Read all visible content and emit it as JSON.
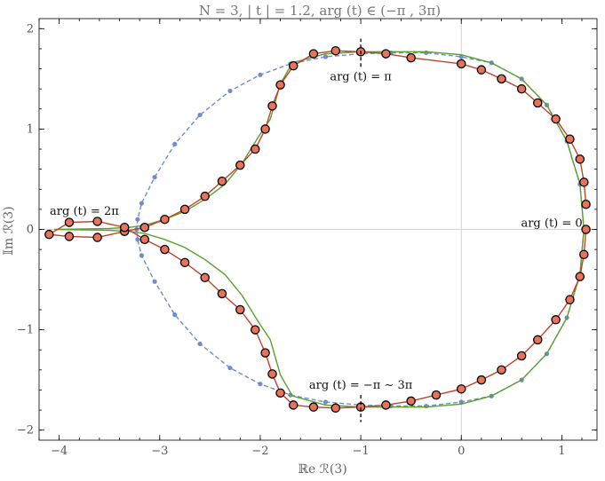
{
  "chart_data": {
    "type": "line",
    "title": "N = 3,  | t | = 1.2,  arg (t) ∈ (−π , 3π)",
    "xlabel": "ℝe ℛ(3)",
    "ylabel": "𝕀m ℛ(3)",
    "xlim": [
      -4.2,
      1.35
    ],
    "ylim": [
      -2.1,
      2.1
    ],
    "xticks": [
      -4,
      -3,
      -2,
      -1,
      0,
      1
    ],
    "yticks": [
      -2,
      -1,
      0,
      1,
      2
    ],
    "grid": false,
    "annotations": [
      {
        "text": "arg (t) = π",
        "x": -1.0,
        "y": 1.52
      },
      {
        "text": "arg (t) = 2π",
        "x": -3.75,
        "y": 0.18
      },
      {
        "text": "arg (t) = 0",
        "x": 0.9,
        "y": 0.06
      },
      {
        "text": "arg (t) = −π ∼ 3π",
        "x": -1.0,
        "y": -1.55
      }
    ],
    "markers": [
      {
        "x": -1.0,
        "y1": 1.62,
        "y2": 1.9
      },
      {
        "x": -1.0,
        "y1": -1.65,
        "y2": -1.92
      }
    ],
    "series": [
      {
        "color": "#6f8ccf",
        "style": "dashed-with-dots",
        "x": [
          1.22,
          1.18,
          1.05,
          0.85,
          0.6,
          0.3,
          0.0,
          -0.35,
          -0.7,
          -1.0,
          -1.35,
          -1.7,
          -2.0,
          -2.3,
          -2.6,
          -2.85,
          -3.05,
          -3.18,
          -3.22,
          -3.23,
          -3.22,
          -3.18,
          -3.05,
          -2.85,
          -2.6,
          -2.3,
          -2.0,
          -1.7,
          -1.35,
          -1.0,
          -0.7,
          -0.35,
          0.0,
          0.3,
          0.6,
          0.85,
          1.05,
          1.18,
          1.22
        ],
        "y": [
          0.0,
          0.45,
          0.88,
          1.24,
          1.5,
          1.66,
          1.72,
          1.76,
          1.76,
          1.75,
          1.72,
          1.65,
          1.54,
          1.38,
          1.14,
          0.85,
          0.52,
          0.26,
          0.1,
          0.0,
          -0.1,
          -0.26,
          -0.52,
          -0.85,
          -1.14,
          -1.38,
          -1.54,
          -1.65,
          -1.72,
          -1.75,
          -1.76,
          -1.76,
          -1.72,
          -1.66,
          -1.5,
          -1.24,
          -0.88,
          -0.45,
          0.0
        ]
      },
      {
        "color": "#5aa02c",
        "style": "solid",
        "x": [
          1.22,
          1.18,
          1.05,
          0.85,
          0.6,
          0.3,
          0.0,
          -0.35,
          -0.7,
          -1.0,
          -1.35,
          -1.68,
          -1.8,
          -1.9,
          -2.02,
          -2.18,
          -2.35,
          -2.55,
          -2.75,
          -2.95,
          -3.15,
          -3.3,
          -3.5,
          -3.75,
          -4.05,
          -3.75,
          -3.5,
          -3.3,
          -3.15,
          -2.95,
          -2.75,
          -2.55,
          -2.35,
          -2.18,
          -2.02,
          -1.9,
          -1.8,
          -1.68,
          -1.35,
          -1.0,
          -0.7,
          -0.35,
          0.0,
          0.3,
          0.6,
          0.85,
          1.05,
          1.18,
          1.22
        ],
        "y": [
          0.0,
          0.45,
          0.88,
          1.24,
          1.5,
          1.66,
          1.74,
          1.77,
          1.77,
          1.77,
          1.75,
          1.66,
          1.45,
          1.1,
          0.92,
          0.66,
          0.45,
          0.3,
          0.18,
          0.1,
          0.04,
          0.02,
          0.01,
          0.005,
          0.0,
          -0.005,
          -0.01,
          -0.02,
          -0.04,
          -0.1,
          -0.18,
          -0.3,
          -0.45,
          -0.66,
          -0.92,
          -1.1,
          -1.45,
          -1.66,
          -1.75,
          -1.77,
          -1.77,
          -1.77,
          -1.74,
          -1.66,
          -1.5,
          -1.24,
          -0.88,
          -0.45,
          0.0
        ]
      },
      {
        "color": "#c1442a",
        "style": "solid-with-circles",
        "x": [
          1.24,
          1.22,
          1.18,
          1.08,
          0.94,
          0.76,
          0.6,
          0.4,
          0.2,
          0.0,
          -0.5,
          -0.75,
          -1.0,
          -1.25,
          -1.47,
          -1.67,
          -1.8,
          -1.88,
          -1.95,
          -2.05,
          -2.2,
          -2.38,
          -2.55,
          -2.75,
          -2.95,
          -3.15,
          -3.35,
          -3.62,
          -3.9,
          -4.1,
          -3.9,
          -3.62,
          -3.35,
          -3.15,
          -2.95,
          -2.75,
          -2.55,
          -2.38,
          -2.2,
          -2.05,
          -1.95,
          -1.88,
          -1.8,
          -1.67,
          -1.47,
          -1.25,
          -1.0,
          -0.75,
          -0.5,
          -0.25,
          0.0,
          0.2,
          0.4,
          0.6,
          0.76,
          0.94,
          1.08,
          1.18,
          1.22,
          1.24
        ],
        "y": [
          0.25,
          0.47,
          0.7,
          0.9,
          1.1,
          1.26,
          1.4,
          1.5,
          1.59,
          1.65,
          1.71,
          1.75,
          1.77,
          1.78,
          1.75,
          1.63,
          1.44,
          1.23,
          1.0,
          0.8,
          0.64,
          0.48,
          0.33,
          0.2,
          0.1,
          0.02,
          -0.02,
          -0.08,
          -0.07,
          -0.05,
          0.07,
          0.08,
          0.02,
          -0.1,
          -0.2,
          -0.33,
          -0.48,
          -0.64,
          -0.8,
          -1.0,
          -1.23,
          -1.44,
          -1.63,
          -1.75,
          -1.77,
          -1.78,
          -1.77,
          -1.75,
          -1.71,
          -1.65,
          -1.59,
          -1.5,
          -1.4,
          -1.26,
          -1.1,
          -0.9,
          -0.7,
          -0.47,
          -0.25,
          0.0
        ]
      }
    ]
  }
}
